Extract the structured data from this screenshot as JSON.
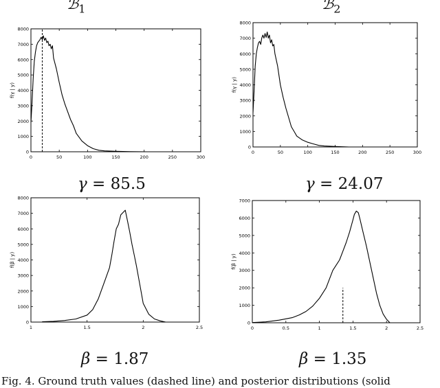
{
  "figure": {
    "titles": [
      {
        "symbol": "ℬ",
        "subscript": "1"
      },
      {
        "symbol": "ℬ",
        "subscript": "2"
      }
    ],
    "params": [
      {
        "symbol": "γ",
        "eq": " = ",
        "value": "85.5"
      },
      {
        "symbol": "γ",
        "eq": " = ",
        "value": "24.07"
      },
      {
        "symbol": "β",
        "eq": " = ",
        "value": "1.87"
      },
      {
        "symbol": "β",
        "eq": " = ",
        "value": "1.35"
      }
    ],
    "caption": "Fig. 4.   Ground truth values (dashed line) and posterior distributions (solid"
  },
  "chart_data": [
    {
      "type": "line",
      "ylabel": "f(γ | y)",
      "xlim": [
        0,
        300
      ],
      "ylim": [
        0,
        8000
      ],
      "xticks": [
        0,
        50,
        100,
        150,
        200,
        250,
        300
      ],
      "yticks": [
        0,
        1000,
        2000,
        3000,
        4000,
        5000,
        6000,
        7000,
        8000
      ],
      "xticklabels": [
        "0",
        "50",
        "100",
        "150",
        "200",
        "250",
        "300"
      ],
      "yticklabels": [
        "0",
        "1000",
        "2000",
        "3000",
        "4000",
        "5000",
        "6000",
        "7000",
        "8000"
      ],
      "ground_truth": 20,
      "series": [
        {
          "x": [
            0,
            2,
            4,
            6,
            8,
            10,
            12,
            14,
            16,
            18,
            20,
            22,
            24,
            26,
            28,
            30,
            32,
            34,
            36,
            38,
            40,
            45,
            50,
            55,
            60,
            65,
            70,
            75,
            80,
            90,
            100,
            110,
            120,
            130,
            150,
            175,
            205
          ],
          "y": [
            1900,
            3200,
            4800,
            5900,
            6500,
            6900,
            7100,
            7200,
            7300,
            7450,
            7300,
            7550,
            7250,
            7400,
            7100,
            7200,
            6900,
            7000,
            6700,
            6900,
            6100,
            5400,
            4500,
            3700,
            3100,
            2600,
            2100,
            1700,
            1200,
            700,
            400,
            200,
            100,
            60,
            30,
            10,
            0
          ]
        }
      ]
    },
    {
      "type": "line",
      "ylabel": "f(γ | y)",
      "xlim": [
        0,
        300
      ],
      "ylim": [
        0,
        8000
      ],
      "xticks": [
        0,
        50,
        100,
        150,
        200,
        250,
        300
      ],
      "yticks": [
        0,
        1000,
        2000,
        3000,
        4000,
        5000,
        6000,
        7000,
        8000
      ],
      "xticklabels": [
        "0",
        "50",
        "100",
        "150",
        "200",
        "250",
        "300"
      ],
      "yticklabels": [
        "0",
        "1000",
        "2000",
        "3000",
        "4000",
        "5000",
        "6000",
        "7000",
        "8000"
      ],
      "ground_truth": null,
      "series": [
        {
          "x": [
            0,
            2,
            4,
            6,
            8,
            10,
            12,
            14,
            16,
            18,
            20,
            22,
            24,
            26,
            28,
            30,
            32,
            34,
            36,
            38,
            40,
            45,
            50,
            55,
            60,
            65,
            70,
            75,
            80,
            90,
            100,
            110,
            120,
            130,
            150,
            175
          ],
          "y": [
            2200,
            3600,
            5200,
            6000,
            6400,
            6700,
            6800,
            6600,
            7000,
            7200,
            7000,
            7300,
            7050,
            7400,
            7000,
            7200,
            6700,
            6900,
            6500,
            6600,
            6000,
            5200,
            4000,
            3200,
            2500,
            1900,
            1300,
            1000,
            700,
            450,
            300,
            200,
            100,
            60,
            30,
            0
          ]
        }
      ]
    },
    {
      "type": "line",
      "ylabel": "f(β | y)",
      "xlim": [
        1,
        2.5
      ],
      "ylim": [
        0,
        8000
      ],
      "xticks": [
        1,
        1.5,
        2,
        2.5
      ],
      "yticks": [
        0,
        1000,
        2000,
        3000,
        4000,
        5000,
        6000,
        7000,
        8000
      ],
      "xticklabels": [
        "1",
        "1.5",
        "2",
        "2.5"
      ],
      "yticklabels": [
        "0",
        "1000",
        "2000",
        "3000",
        "4000",
        "5000",
        "6000",
        "7000",
        "8000"
      ],
      "ground_truth": null,
      "series": [
        {
          "x": [
            1.1,
            1.2,
            1.3,
            1.4,
            1.5,
            1.55,
            1.6,
            1.65,
            1.7,
            1.72,
            1.74,
            1.76,
            1.78,
            1.8,
            1.82,
            1.84,
            1.86,
            1.88,
            1.9,
            1.92,
            1.94,
            1.96,
            1.98,
            2.0,
            2.05,
            2.1,
            2.15,
            2.2
          ],
          "y": [
            20,
            50,
            100,
            200,
            450,
            800,
            1500,
            2500,
            3500,
            4300,
            5200,
            6000,
            6300,
            6900,
            7050,
            7200,
            6500,
            5800,
            5000,
            4300,
            3600,
            2800,
            2000,
            1200,
            500,
            200,
            80,
            0
          ]
        }
      ]
    },
    {
      "type": "line",
      "ylabel": "f(β | y)",
      "xlim": [
        0,
        2.5
      ],
      "ylim": [
        0,
        7000
      ],
      "xticks": [
        0,
        0.5,
        1,
        1.5,
        2,
        2.5
      ],
      "yticks": [
        0,
        1000,
        2000,
        3000,
        4000,
        5000,
        6000,
        7000
      ],
      "xticklabels": [
        "0",
        "0.5",
        "1",
        "1.5",
        "2",
        "2.5"
      ],
      "yticklabels": [
        "0",
        "1000",
        "2000",
        "3000",
        "4000",
        "5000",
        "6000",
        "7000"
      ],
      "ground_truth": 1.35,
      "series": [
        {
          "x": [
            0.0,
            0.2,
            0.4,
            0.6,
            0.7,
            0.8,
            0.9,
            1.0,
            1.1,
            1.15,
            1.2,
            1.25,
            1.3,
            1.35,
            1.4,
            1.45,
            1.5,
            1.52,
            1.55,
            1.58,
            1.6,
            1.65,
            1.7,
            1.75,
            1.8,
            1.85,
            1.9,
            1.95,
            2.0,
            2.05
          ],
          "y": [
            10,
            50,
            150,
            300,
            450,
            650,
            950,
            1400,
            2000,
            2500,
            3000,
            3300,
            3600,
            4100,
            4600,
            5200,
            5900,
            6200,
            6400,
            6300,
            6000,
            5200,
            4400,
            3500,
            2600,
            1700,
            1000,
            500,
            200,
            0
          ]
        }
      ]
    }
  ]
}
